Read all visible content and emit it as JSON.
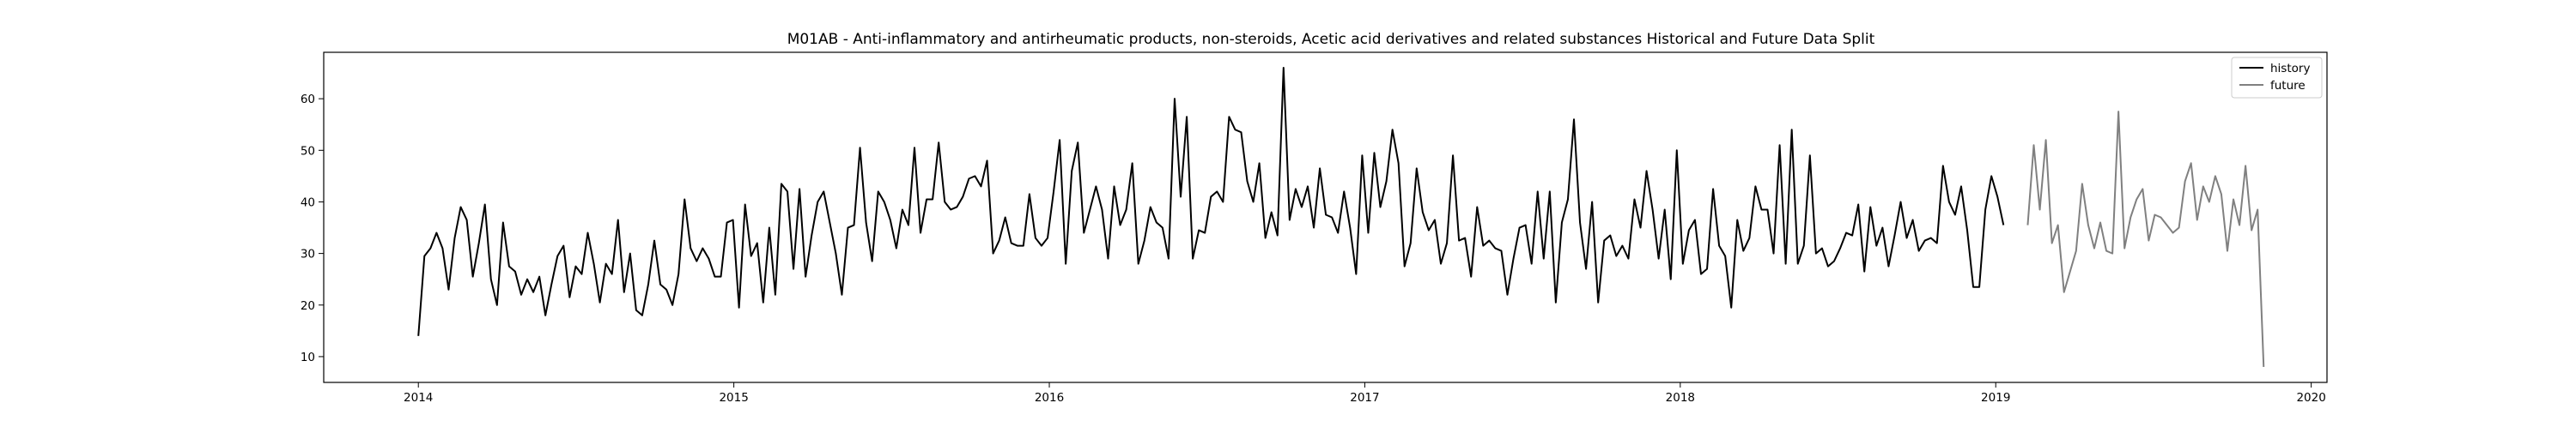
{
  "chart_data": {
    "type": "line",
    "title": "M01AB - Anti-inflammatory and antirheumatic products, non-steroids, Acetic acid derivatives and related substances Historical and Future Data Split",
    "xlabel": "",
    "ylabel": "",
    "xlim": [
      2013.7,
      2020.05
    ],
    "ylim": [
      5,
      69
    ],
    "grid": false,
    "legend_position": "top-right",
    "x_ticks": [
      2014,
      2015,
      2016,
      2017,
      2018,
      2019,
      2020
    ],
    "x_tick_labels": [
      "2014",
      "2015",
      "2016",
      "2017",
      "2018",
      "2019",
      "2020"
    ],
    "y_ticks": [
      10,
      20,
      30,
      40,
      50,
      60
    ],
    "y_tick_labels": [
      "10",
      "20",
      "30",
      "40",
      "50",
      "60"
    ],
    "x_start": 2014.0,
    "x_step": 0.019178,
    "series": [
      {
        "name": "history",
        "color": "#000000",
        "start_index": 0,
        "values": [
          14,
          29.5,
          31,
          34,
          31,
          23,
          33,
          39,
          36.5,
          25.5,
          32,
          39.5,
          25,
          20,
          36,
          27.5,
          26.5,
          22,
          25,
          22.5,
          25.5,
          18,
          24,
          29.5,
          31.5,
          21.5,
          27.5,
          26,
          34,
          28,
          20.5,
          28,
          26,
          36.5,
          22.5,
          30,
          19,
          18,
          24,
          32.5,
          24,
          23,
          20,
          26,
          40.5,
          31,
          28.5,
          31,
          29,
          25.5,
          25.5,
          36,
          36.5,
          19.5,
          39.5,
          29.5,
          32,
          20.5,
          35,
          22,
          43.5,
          42,
          27,
          42.5,
          25.5,
          33.5,
          40,
          42,
          36,
          30,
          22,
          35,
          35.5,
          50.5,
          36,
          28.5,
          42,
          40,
          36.5,
          31,
          38.5,
          35.5,
          50.5,
          34,
          40.5,
          40.5,
          51.5,
          40,
          38.5,
          39,
          41,
          44.5,
          45,
          43,
          48,
          30,
          32.5,
          37,
          32,
          31.5,
          31.5,
          41.5,
          33,
          31.5,
          33,
          42,
          52,
          28,
          46,
          51.5,
          34,
          38.5,
          43,
          38.5,
          29,
          43,
          35.5,
          38.5,
          47.5,
          28,
          32.5,
          39,
          36,
          35,
          29,
          60,
          41,
          56.5,
          29,
          34.5,
          34,
          41,
          42,
          40,
          56.5,
          54,
          53.5,
          44,
          40,
          47.5,
          33,
          38,
          33.5,
          66,
          36.5,
          42.5,
          39,
          43,
          35,
          46.5,
          37.5,
          37,
          34,
          42,
          35,
          26,
          49,
          34,
          49.5,
          39,
          44,
          54,
          47.5,
          27.5,
          32,
          46.5,
          38,
          34.5,
          36.5,
          28,
          32,
          49,
          32.5,
          33,
          25.5,
          39,
          31.5,
          32.5,
          31,
          30.5,
          22,
          29,
          35,
          35.5,
          28,
          42,
          29,
          42,
          20.5,
          36,
          40.5,
          56,
          36,
          27,
          40,
          20.5,
          32.5,
          33.5,
          29.5,
          31.5,
          29,
          40.5,
          35,
          46,
          38.5,
          29,
          38.5,
          25,
          50,
          28,
          34.5,
          36.5,
          26,
          27,
          42.5,
          31.5,
          29.5,
          19.5,
          36.5,
          30.5,
          33,
          43,
          38.5,
          38.5,
          30,
          51,
          28,
          54,
          28,
          31.5,
          49,
          30,
          31,
          27.5,
          28.5,
          31,
          34,
          33.5,
          39.5,
          26.5,
          39,
          31.5,
          35,
          27.5,
          33.5,
          40,
          33,
          36.5,
          30.5,
          32.5,
          33,
          32,
          47,
          40,
          37.5,
          43,
          34.5,
          23.5,
          23.5,
          38.5,
          45,
          41,
          35.5
        ]
      },
      {
        "name": "future",
        "color": "#808080",
        "start_index": 266,
        "values": [
          35.5,
          51,
          38.5,
          52,
          32,
          35.5,
          22.5,
          26.5,
          30.5,
          43.5,
          35.5,
          31,
          36,
          30.5,
          30,
          57.5,
          31,
          37,
          40.5,
          42.5,
          32.5,
          37.5,
          37,
          35.5,
          34,
          35,
          44,
          47.5,
          36.5,
          43,
          40,
          45,
          41.5,
          30.5,
          40.5,
          35.5,
          47,
          34.5,
          38.5,
          8
        ]
      }
    ]
  }
}
